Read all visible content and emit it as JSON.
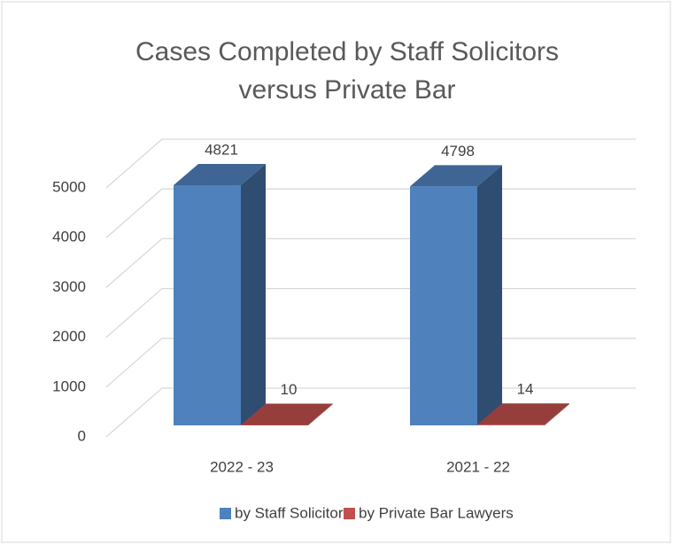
{
  "chart_data": {
    "type": "bar3d",
    "title": [
      "Cases Completed by Staff Solicitors",
      "versus Private Bar"
    ],
    "categories": [
      "2022 - 23",
      "2021 - 22"
    ],
    "series": [
      {
        "name": "by Staff Solicitors",
        "color": "#4f81bd",
        "values": [
          4821,
          4798
        ]
      },
      {
        "name": "by Private Bar Lawyers",
        "color": "#c0504d",
        "values": [
          10,
          14
        ]
      }
    ],
    "ylim": [
      0,
      5000
    ],
    "yticks": [
      0,
      1000,
      2000,
      3000,
      4000,
      5000
    ],
    "grid": true,
    "legend": "bottom"
  }
}
